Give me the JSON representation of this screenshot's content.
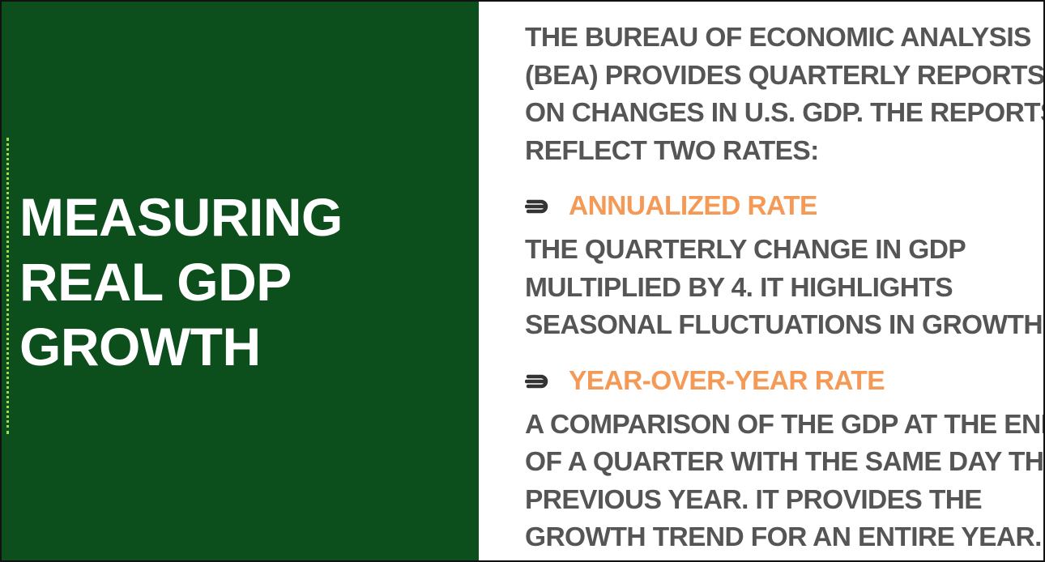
{
  "title": {
    "lines": [
      "MEASURING",
      "REAL GDP",
      "GROWTH"
    ]
  },
  "intro": {
    "lines": [
      "THE BUREAU OF ECONOMIC ANALYSIS",
      "(BEA) PROVIDES QUARTERLY REPORTS",
      "ON CHANGES IN U.S. GDP. THE REPORTS",
      "REFLECT TWO RATES:"
    ]
  },
  "rates": [
    {
      "heading": "ANNUALIZED RATE",
      "icon": "arrow-right-icon",
      "description": [
        "THE QUARTERLY CHANGE IN GDP",
        "MULTIPLIED BY 4. IT HIGHLIGHTS",
        "SEASONAL FLUCTUATIONS IN GROWTH."
      ]
    },
    {
      "heading": "YEAR-OVER-YEAR RATE",
      "icon": "arrow-right-icon",
      "description": [
        "A COMPARISON OF THE GDP AT THE END",
        "OF A QUARTER WITH THE SAME DAY THE",
        "PREVIOUS YEAR. IT PROVIDES THE",
        "GROWTH TREND FOR AN ENTIRE YEAR."
      ]
    }
  ],
  "colors": {
    "panel_green": "#0c4f1d",
    "accent_dots": "#a7d94e",
    "heading_orange": "#f59a56",
    "body_gray": "#555555",
    "title_white": "#ffffff"
  }
}
